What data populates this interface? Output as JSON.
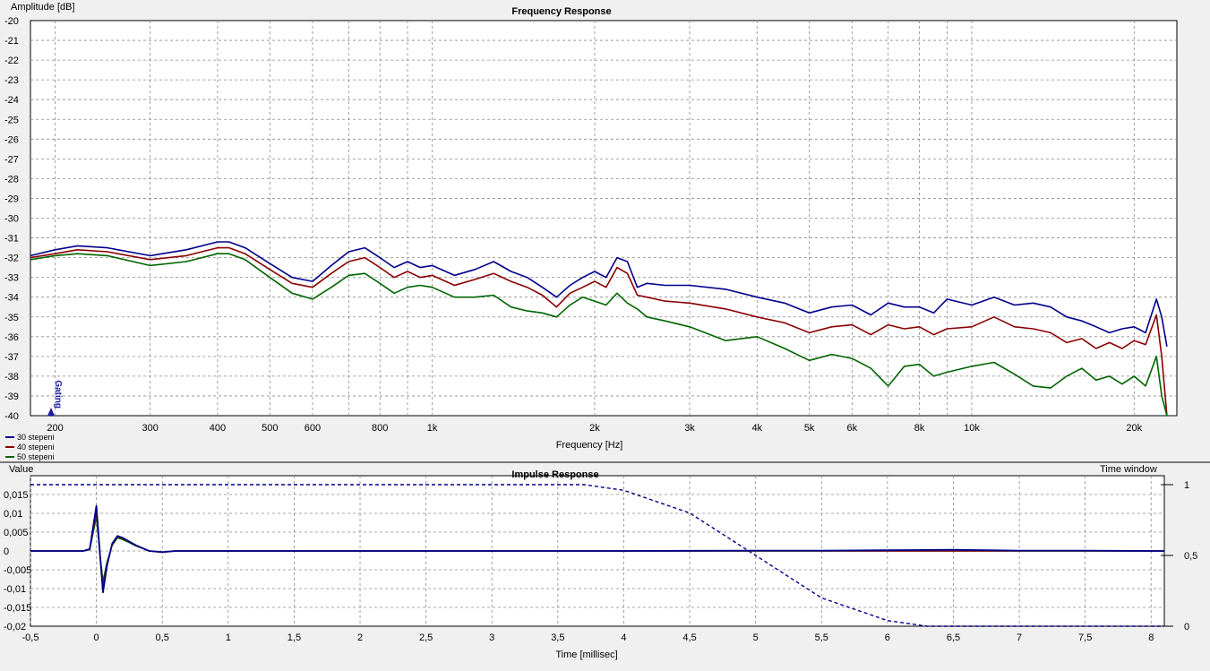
{
  "chart_data": [
    {
      "type": "line",
      "title": "Frequency Response",
      "xlabel": "Frequency [Hz]",
      "ylabel": "Amplitude [dB]",
      "xscale": "log",
      "xlim": [
        180,
        24000
      ],
      "ylim": [
        -40,
        -20
      ],
      "grid": true,
      "legend_position": "bottom-left",
      "marker_label": "Gating",
      "yticks": [
        "-20",
        "-21",
        "-22",
        "-23",
        "-24",
        "-25",
        "-26",
        "-27",
        "-28",
        "-29",
        "-30",
        "-31",
        "-32",
        "-33",
        "-34",
        "-35",
        "-36",
        "-37",
        "-38",
        "-39",
        "-40"
      ],
      "xticks": [
        {
          "v": 200,
          "l": "200"
        },
        {
          "v": 300,
          "l": "300"
        },
        {
          "v": 400,
          "l": "400"
        },
        {
          "v": 500,
          "l": "500"
        },
        {
          "v": 600,
          "l": "600"
        },
        {
          "v": 800,
          "l": "800"
        },
        {
          "v": 1000,
          "l": "1k"
        },
        {
          "v": 2000,
          "l": "2k"
        },
        {
          "v": 3000,
          "l": "3k"
        },
        {
          "v": 4000,
          "l": "4k"
        },
        {
          "v": 5000,
          "l": "5k"
        },
        {
          "v": 6000,
          "l": "6k"
        },
        {
          "v": 8000,
          "l": "8k"
        },
        {
          "v": 10000,
          "l": "10k"
        },
        {
          "v": 20000,
          "l": "20k"
        }
      ],
      "series": [
        {
          "name": "30 stepeni",
          "color": "#00008b",
          "x": [
            180,
            200,
            220,
            250,
            300,
            350,
            400,
            420,
            450,
            500,
            550,
            600,
            650,
            700,
            750,
            800,
            850,
            900,
            950,
            1000,
            1100,
            1200,
            1300,
            1400,
            1500,
            1600,
            1700,
            1800,
            1900,
            2000,
            2100,
            2200,
            2300,
            2400,
            2500,
            2700,
            3000,
            3500,
            4000,
            4500,
            5000,
            5500,
            6000,
            6500,
            7000,
            7500,
            8000,
            8500,
            9000,
            10000,
            11000,
            12000,
            13000,
            14000,
            15000,
            16000,
            17000,
            18000,
            19000,
            20000,
            21000,
            22000,
            22500,
            23000
          ],
          "y": [
            -31.9,
            -31.6,
            -31.4,
            -31.5,
            -31.9,
            -31.6,
            -31.2,
            -31.2,
            -31.5,
            -32.3,
            -33.0,
            -33.2,
            -32.4,
            -31.7,
            -31.5,
            -32.0,
            -32.5,
            -32.2,
            -32.5,
            -32.4,
            -32.9,
            -32.6,
            -32.2,
            -32.7,
            -33.0,
            -33.5,
            -34.0,
            -33.4,
            -33.0,
            -32.7,
            -33.0,
            -32.0,
            -32.2,
            -33.5,
            -33.3,
            -33.4,
            -33.4,
            -33.6,
            -34.0,
            -34.3,
            -34.8,
            -34.5,
            -34.4,
            -34.9,
            -34.3,
            -34.5,
            -34.5,
            -34.8,
            -34.1,
            -34.4,
            -34.0,
            -34.4,
            -34.3,
            -34.5,
            -35.0,
            -35.2,
            -35.5,
            -35.8,
            -35.6,
            -35.5,
            -35.8,
            -34.1,
            -35.0,
            -36.5
          ]
        },
        {
          "name": "40 stepeni",
          "color": "#8b0000",
          "x": [
            180,
            200,
            220,
            250,
            300,
            350,
            400,
            420,
            450,
            500,
            550,
            600,
            650,
            700,
            750,
            800,
            850,
            900,
            950,
            1000,
            1100,
            1200,
            1300,
            1400,
            1500,
            1600,
            1700,
            1800,
            1900,
            2000,
            2100,
            2200,
            2300,
            2400,
            2500,
            2700,
            3000,
            3500,
            4000,
            4500,
            5000,
            5500,
            6000,
            6500,
            7000,
            7500,
            8000,
            8500,
            9000,
            10000,
            11000,
            12000,
            13000,
            14000,
            15000,
            16000,
            17000,
            18000,
            19000,
            20000,
            21000,
            22000,
            22500,
            23000
          ],
          "y": [
            -32.0,
            -31.8,
            -31.6,
            -31.7,
            -32.1,
            -31.9,
            -31.5,
            -31.5,
            -31.8,
            -32.6,
            -33.3,
            -33.5,
            -32.8,
            -32.2,
            -32.0,
            -32.5,
            -33.0,
            -32.7,
            -33.0,
            -32.9,
            -33.4,
            -33.1,
            -32.8,
            -33.2,
            -33.5,
            -33.9,
            -34.5,
            -33.8,
            -33.5,
            -33.2,
            -33.5,
            -32.5,
            -32.8,
            -33.9,
            -34.0,
            -34.2,
            -34.3,
            -34.6,
            -35.0,
            -35.3,
            -35.8,
            -35.5,
            -35.4,
            -35.9,
            -35.4,
            -35.6,
            -35.5,
            -35.9,
            -35.6,
            -35.5,
            -35.0,
            -35.5,
            -35.6,
            -35.8,
            -36.3,
            -36.1,
            -36.6,
            -36.3,
            -36.6,
            -36.2,
            -36.4,
            -34.9,
            -37.0,
            -40.0
          ]
        },
        {
          "name": "50 stepeni",
          "color": "#006400",
          "x": [
            180,
            200,
            220,
            250,
            300,
            350,
            400,
            420,
            450,
            500,
            550,
            600,
            650,
            700,
            750,
            800,
            850,
            900,
            950,
            1000,
            1100,
            1200,
            1300,
            1400,
            1500,
            1600,
            1700,
            1800,
            1900,
            2000,
            2100,
            2200,
            2300,
            2400,
            2500,
            2700,
            3000,
            3500,
            4000,
            4500,
            5000,
            5500,
            6000,
            6500,
            7000,
            7500,
            8000,
            8500,
            9000,
            10000,
            11000,
            12000,
            13000,
            14000,
            15000,
            16000,
            17000,
            18000,
            19000,
            20000,
            21000,
            22000,
            22500,
            23000
          ],
          "y": [
            -32.1,
            -31.9,
            -31.8,
            -31.9,
            -32.4,
            -32.2,
            -31.8,
            -31.8,
            -32.1,
            -33.0,
            -33.8,
            -34.1,
            -33.5,
            -32.9,
            -32.8,
            -33.3,
            -33.8,
            -33.5,
            -33.4,
            -33.5,
            -34.0,
            -34.0,
            -33.9,
            -34.5,
            -34.7,
            -34.8,
            -35.0,
            -34.4,
            -34.0,
            -34.2,
            -34.4,
            -33.8,
            -34.3,
            -34.6,
            -35.0,
            -35.2,
            -35.5,
            -36.2,
            -36.0,
            -36.6,
            -37.2,
            -36.9,
            -37.1,
            -37.6,
            -38.5,
            -37.5,
            -37.4,
            -38.0,
            -37.8,
            -37.5,
            -37.3,
            -37.9,
            -38.5,
            -38.6,
            -38.0,
            -37.6,
            -38.2,
            -38.0,
            -38.4,
            -38.0,
            -38.5,
            -37.0,
            -39.0,
            -40.0
          ]
        }
      ]
    },
    {
      "type": "line",
      "title": "Impulse Response",
      "xlabel": "Time [millisec]",
      "ylabel": "Value",
      "y2label": "Time window",
      "xlim": [
        -0.5,
        8.1
      ],
      "ylim": [
        -0.02,
        0.02
      ],
      "y2lim": [
        0,
        1
      ],
      "grid": true,
      "xticks": [
        {
          "v": -0.5,
          "l": "-0,5"
        },
        {
          "v": 0,
          "l": "0"
        },
        {
          "v": 0.5,
          "l": "0,5"
        },
        {
          "v": 1,
          "l": "1"
        },
        {
          "v": 1.5,
          "l": "1,5"
        },
        {
          "v": 2,
          "l": "2"
        },
        {
          "v": 2.5,
          "l": "2,5"
        },
        {
          "v": 3,
          "l": "3"
        },
        {
          "v": 3.5,
          "l": "3,5"
        },
        {
          "v": 4,
          "l": "4"
        },
        {
          "v": 4.5,
          "l": "4,5"
        },
        {
          "v": 5,
          "l": "5"
        },
        {
          "v": 5.5,
          "l": "5,5"
        },
        {
          "v": 6,
          "l": "6"
        },
        {
          "v": 6.5,
          "l": "6,5"
        },
        {
          "v": 7,
          "l": "7"
        },
        {
          "v": 7.5,
          "l": "7,5"
        },
        {
          "v": 8,
          "l": "8"
        }
      ],
      "yticks": [
        {
          "v": 0.015,
          "l": "0,015"
        },
        {
          "v": 0.01,
          "l": "0,01"
        },
        {
          "v": 0.005,
          "l": "0,005"
        },
        {
          "v": 0,
          "l": "0"
        },
        {
          "v": -0.005,
          "l": "-0,005"
        },
        {
          "v": -0.01,
          "l": "-0,01"
        },
        {
          "v": -0.015,
          "l": "-0,015"
        },
        {
          "v": -0.02,
          "l": "-0,02"
        }
      ],
      "y2ticks": [
        {
          "v": 1,
          "l": "1"
        },
        {
          "v": 0.5,
          "l": "0,5"
        },
        {
          "v": 0,
          "l": "0"
        }
      ],
      "series": [
        {
          "color": "#00008b",
          "x": [
            -0.5,
            -0.1,
            -0.05,
            0,
            0.03,
            0.05,
            0.08,
            0.12,
            0.16,
            0.2,
            0.25,
            0.3,
            0.4,
            0.5,
            0.6,
            0.8,
            1.0,
            2.0,
            3.0,
            4.0,
            5.0,
            5.5,
            6.0,
            6.5,
            7.0,
            7.5,
            8.0,
            8.1
          ],
          "y": [
            0,
            0,
            0.0005,
            0.012,
            -0.002,
            -0.011,
            -0.004,
            0.002,
            0.004,
            0.0035,
            0.0025,
            0.0015,
            0,
            -0.0003,
            0,
            0,
            0,
            0,
            0,
            0,
            0.0001,
            0.0001,
            0.0002,
            0.0003,
            0.0001,
            0.0001,
            0,
            0
          ]
        },
        {
          "color": "#8b0000",
          "x": [
            -0.5,
            -0.1,
            -0.05,
            0,
            0.03,
            0.05,
            0.08,
            0.12,
            0.16,
            0.2,
            0.25,
            0.3,
            0.4,
            0.5,
            0.6,
            1.0,
            8.1
          ],
          "y": [
            0,
            0,
            0.0004,
            0.0105,
            -0.002,
            -0.0095,
            -0.0035,
            0.0018,
            0.0038,
            0.0033,
            0.0024,
            0.0014,
            0,
            -0.0003,
            0,
            0,
            0
          ]
        },
        {
          "color": "#006400",
          "x": [
            -0.5,
            -0.1,
            -0.05,
            0,
            0.03,
            0.05,
            0.08,
            0.12,
            0.16,
            0.2,
            0.25,
            0.3,
            0.4,
            0.5,
            0.6,
            1.0,
            8.1
          ],
          "y": [
            0,
            0,
            0.0003,
            0.009,
            -0.0018,
            -0.008,
            -0.003,
            0.0015,
            0.0035,
            0.003,
            0.0022,
            0.0013,
            0,
            -0.0003,
            0,
            0,
            0
          ]
        }
      ],
      "window_curve": {
        "x": [
          -0.5,
          3.7,
          4.0,
          4.5,
          5.0,
          5.5,
          6.0,
          6.3,
          8.1
        ],
        "y": [
          1,
          1,
          0.96,
          0.8,
          0.5,
          0.2,
          0.04,
          0,
          0
        ],
        "style": "dashed",
        "color": "#00008b"
      }
    }
  ]
}
